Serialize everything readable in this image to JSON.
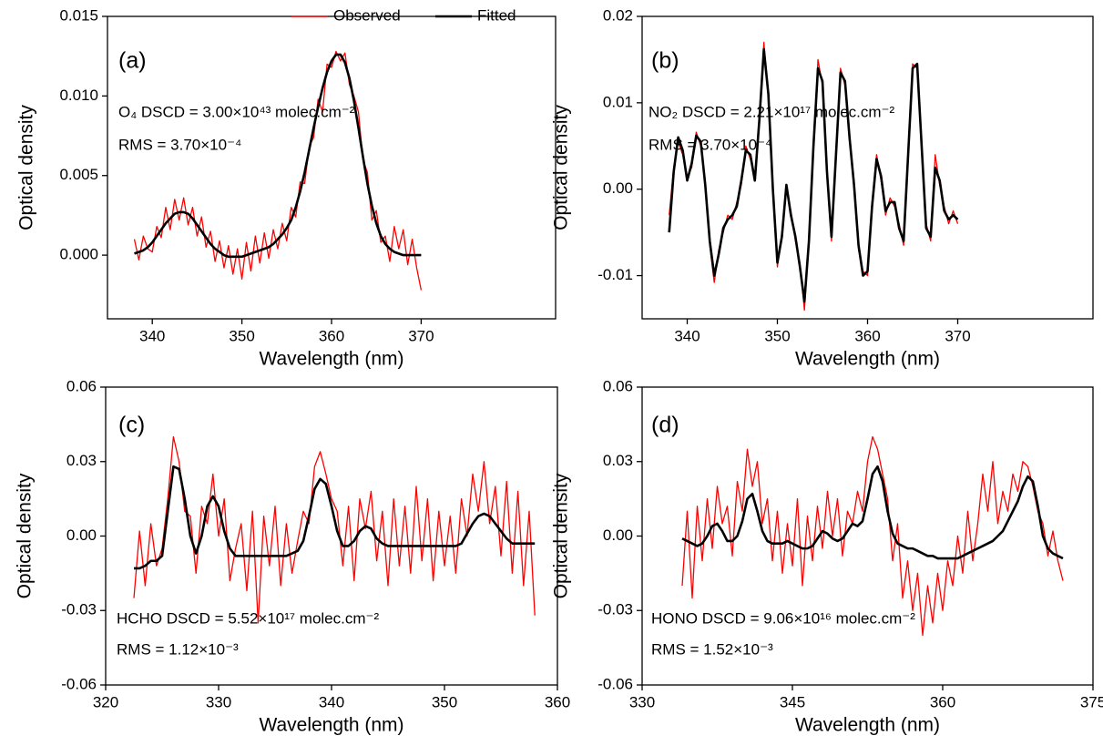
{
  "chart_data": [
    {
      "type": "line",
      "xlabel": "Wavelength (nm)",
      "ylabel": "Optical density",
      "annotations": [
        "(a)",
        "O₄ DSCD = 3.00×10⁴³ molec.cm⁻²",
        "RMS = 3.70×10⁻⁴"
      ],
      "legend": "upper right",
      "xlim": [
        335,
        385
      ],
      "xticks": [
        340,
        350,
        360,
        370
      ],
      "ylim": [
        -0.004,
        0.015
      ],
      "yticks": [
        {
          "value": 0,
          "label": "0.000"
        },
        0.005,
        {
          "value": 0.01,
          "label": "0.010"
        },
        0.015
      ],
      "x": [
        338,
        338.5,
        339,
        339.5,
        340,
        340.5,
        341,
        341.5,
        342,
        342.5,
        343,
        343.5,
        344,
        344.5,
        345,
        345.5,
        346,
        346.5,
        347,
        347.5,
        348,
        348.5,
        349,
        349.5,
        350,
        350.5,
        351,
        351.5,
        352,
        352.5,
        353,
        353.5,
        354,
        354.5,
        355,
        355.5,
        356,
        356.5,
        357,
        357.5,
        358,
        358.5,
        359,
        359.5,
        360,
        360.5,
        361,
        361.5,
        362,
        362.5,
        363,
        363.5,
        364,
        364.5,
        365,
        365.5,
        366,
        366.5,
        367,
        367.5,
        368,
        368.5,
        369,
        369.5,
        370
      ],
      "series": [
        {
          "name": "Observed",
          "color": "#ff0000",
          "values": [
            0.001,
            -0.0003,
            0.0012,
            0.0004,
            0.0002,
            0.0018,
            0.0011,
            0.003,
            0.0016,
            0.0035,
            0.0022,
            0.0036,
            0.0019,
            0.003,
            0.0012,
            0.0024,
            0.0005,
            0.0015,
            -0.0004,
            0.0009,
            -0.0008,
            0.0006,
            -0.0012,
            0.0004,
            -0.0015,
            0.0008,
            -0.001,
            0.0012,
            -0.0005,
            0.0014,
            -0.0002,
            0.0016,
            0.0004,
            0.002,
            0.0009,
            0.003,
            0.0024,
            0.0046,
            0.0045,
            0.0068,
            0.0074,
            0.0098,
            0.009,
            0.012,
            0.0118,
            0.0128,
            0.0122,
            0.0127,
            0.0107,
            0.01,
            0.009,
            0.006,
            0.0052,
            0.0022,
            0.0028,
            0.0008,
            0.0012,
            -0.0004,
            0.0018,
            0.0004,
            0.0016,
            -0.0006,
            0.001,
            -0.0008,
            -0.0022
          ]
        },
        {
          "name": "Fitted",
          "color": "#000000",
          "values": [
            0.0001,
            0.0002,
            0.0003,
            0.0005,
            0.0008,
            0.0012,
            0.0016,
            0.002,
            0.0023,
            0.0026,
            0.0027,
            0.0027,
            0.0026,
            0.0023,
            0.0019,
            0.0015,
            0.0011,
            0.0007,
            0.0004,
            0.0002,
            0.0,
            -0.0001,
            -0.0001,
            -0.0001,
            -0.0001,
            0.0,
            0.0001,
            0.0002,
            0.0003,
            0.0004,
            0.0005,
            0.0007,
            0.001,
            0.0013,
            0.0017,
            0.0022,
            0.003,
            0.004,
            0.0052,
            0.0066,
            0.008,
            0.0093,
            0.0105,
            0.0115,
            0.0122,
            0.0126,
            0.0126,
            0.0121,
            0.0111,
            0.0097,
            0.008,
            0.0062,
            0.0045,
            0.0031,
            0.002,
            0.0012,
            0.0007,
            0.0004,
            0.0002,
            0.0001,
            0.0,
            0.0,
            0.0,
            0.0,
            0.0
          ]
        }
      ]
    },
    {
      "type": "line",
      "xlabel": "Wavelength (nm)",
      "ylabel": "Optical density",
      "annotations": [
        "(b)",
        "NO₂ DSCD = 2.21×10¹⁷ molec.cm⁻²",
        "RMS = 3.70×10⁻⁴"
      ],
      "xlim": [
        335,
        385
      ],
      "xticks": [
        340,
        350,
        360,
        370
      ],
      "ylim": [
        -0.015,
        0.02
      ],
      "yticks": [
        -0.01,
        {
          "value": 0,
          "label": "0.00"
        },
        0.01,
        0.02
      ],
      "x": [
        338,
        338.5,
        339,
        339.5,
        340,
        340.5,
        341,
        341.5,
        342,
        342.5,
        343,
        343.5,
        344,
        344.5,
        345,
        345.5,
        346,
        346.5,
        347,
        347.5,
        348,
        348.5,
        349,
        349.5,
        350,
        350.5,
        351,
        351.5,
        352,
        352.5,
        353,
        353.5,
        354,
        354.5,
        355,
        355.5,
        356,
        356.5,
        357,
        357.5,
        358,
        358.5,
        359,
        359.5,
        360,
        360.5,
        361,
        361.5,
        362,
        362.5,
        363,
        363.5,
        364,
        364.5,
        365,
        365.5,
        366,
        366.5,
        367,
        367.5,
        368,
        368.5,
        369,
        369.5,
        370
      ],
      "series": [
        {
          "color": "#ff0000",
          "values": [
            -0.003,
            0.0025,
            0.0055,
            0.004,
            0.0015,
            0.0025,
            0.0066,
            0.005,
            0.001,
            -0.0065,
            -0.0108,
            -0.007,
            -0.005,
            -0.003,
            -0.0035,
            -0.0015,
            0.0005,
            0.005,
            0.0035,
            0.0015,
            0.0075,
            0.017,
            0.0105,
            0.0005,
            -0.009,
            -0.005,
            0.0,
            -0.0025,
            -0.006,
            -0.0085,
            -0.014,
            -0.0055,
            0.0045,
            0.015,
            0.012,
            0.0025,
            -0.006,
            0.0045,
            0.014,
            0.012,
            0.0055,
            0.001,
            -0.007,
            -0.0095,
            -0.01,
            -0.0015,
            0.004,
            0.001,
            -0.003,
            -0.001,
            -0.002,
            -0.004,
            -0.0065,
            0.0035,
            0.0145,
            0.014,
            0.0055,
            -0.004,
            -0.006,
            0.004,
            0.0005,
            -0.002,
            -0.004,
            -0.0025,
            -0.004
          ]
        },
        {
          "color": "#000000",
          "values": [
            -0.005,
            0.002,
            0.006,
            0.0045,
            0.001,
            0.003,
            0.0062,
            0.0055,
            0.0005,
            -0.006,
            -0.01,
            -0.0075,
            -0.0045,
            -0.0035,
            -0.003,
            -0.002,
            0.001,
            0.0045,
            0.004,
            0.001,
            0.008,
            0.0162,
            0.011,
            0.0,
            -0.0085,
            -0.0055,
            0.0005,
            -0.003,
            -0.0055,
            -0.009,
            -0.013,
            -0.006,
            0.005,
            0.014,
            0.0125,
            0.002,
            -0.0055,
            0.004,
            0.0135,
            0.0125,
            0.006,
            0.0005,
            -0.0065,
            -0.01,
            -0.0095,
            -0.002,
            0.0035,
            0.0015,
            -0.0025,
            -0.0015,
            -0.0015,
            -0.0045,
            -0.006,
            0.004,
            0.014,
            0.0145,
            0.005,
            -0.0045,
            -0.0055,
            0.0025,
            0.001,
            -0.0025,
            -0.0035,
            -0.003,
            -0.0035
          ]
        }
      ]
    },
    {
      "type": "line",
      "xlabel": "Wavelength (nm)",
      "ylabel": "Optical density",
      "annotations": [
        "(c)",
        "HCHO DSCD = 5.52×10¹⁷ molec.cm⁻²",
        "RMS = 1.12×10⁻³"
      ],
      "xlim": [
        320,
        360
      ],
      "xticks": [
        320,
        330,
        340,
        350,
        360
      ],
      "ylim": [
        -0.06,
        0.06
      ],
      "yticks": [
        -0.06,
        -0.03,
        {
          "value": 0,
          "label": "0.00"
        },
        0.03,
        0.06
      ],
      "x": [
        322.5,
        323,
        323.5,
        324,
        324.5,
        325,
        325.5,
        326,
        326.5,
        327,
        327.5,
        328,
        328.5,
        329,
        329.5,
        330,
        330.5,
        331,
        331.5,
        332,
        332.5,
        333,
        333.5,
        334,
        334.5,
        335,
        335.5,
        336,
        336.5,
        337,
        337.5,
        338,
        338.5,
        339,
        339.5,
        340,
        340.5,
        341,
        341.5,
        342,
        342.5,
        343,
        343.5,
        344,
        344.5,
        345,
        345.5,
        346,
        346.5,
        347,
        347.5,
        348,
        348.5,
        349,
        349.5,
        350,
        350.5,
        351,
        351.5,
        352,
        352.5,
        353,
        353.5,
        354,
        354.5,
        355,
        355.5,
        356,
        356.5,
        357,
        357.5,
        358
      ],
      "series": [
        {
          "color": "#ff0000",
          "values": [
            -0.025,
            0.002,
            -0.02,
            0.005,
            -0.012,
            -0.005,
            0.015,
            0.04,
            0.03,
            0.01,
            0.008,
            -0.015,
            0.012,
            0.005,
            0.025,
            0.0,
            0.015,
            -0.018,
            -0.005,
            0.005,
            -0.022,
            0.01,
            -0.035,
            0.008,
            -0.012,
            0.012,
            -0.02,
            0.005,
            -0.015,
            -0.002,
            0.01,
            0.005,
            0.028,
            0.034,
            0.025,
            0.015,
            0.01,
            -0.012,
            0.012,
            -0.018,
            0.015,
            0.003,
            0.018,
            -0.01,
            0.01,
            -0.02,
            0.015,
            -0.012,
            0.012,
            -0.015,
            0.02,
            -0.01,
            0.015,
            -0.018,
            0.01,
            -0.012,
            0.008,
            -0.015,
            0.015,
            0.0,
            0.025,
            0.01,
            0.03,
            0.005,
            0.02,
            -0.008,
            0.022,
            -0.015,
            0.018,
            -0.02,
            0.01,
            -0.032
          ]
        },
        {
          "color": "#000000",
          "values": [
            -0.013,
            -0.013,
            -0.012,
            -0.01,
            -0.01,
            -0.008,
            0.01,
            0.028,
            0.027,
            0.015,
            0.0,
            -0.007,
            0.0,
            0.012,
            0.016,
            0.012,
            0.002,
            -0.005,
            -0.008,
            -0.008,
            -0.008,
            -0.008,
            -0.008,
            -0.008,
            -0.008,
            -0.008,
            -0.008,
            -0.008,
            -0.007,
            -0.006,
            -0.002,
            0.008,
            0.019,
            0.023,
            0.021,
            0.012,
            0.002,
            -0.004,
            -0.004,
            -0.002,
            0.002,
            0.004,
            0.003,
            -0.001,
            -0.003,
            -0.004,
            -0.004,
            -0.004,
            -0.004,
            -0.004,
            -0.004,
            -0.004,
            -0.004,
            -0.004,
            -0.004,
            -0.004,
            -0.004,
            -0.004,
            -0.003,
            0.001,
            0.005,
            0.008,
            0.009,
            0.008,
            0.005,
            0.002,
            -0.001,
            -0.003,
            -0.003,
            -0.003,
            -0.003,
            -0.003
          ]
        }
      ]
    },
    {
      "type": "line",
      "xlabel": "Wavelength (nm)",
      "ylabel": "Optical density",
      "annotations": [
        "(d)",
        "HONO DSCD = 9.06×10¹⁶ molec.cm⁻²",
        "RMS = 1.52×10⁻³"
      ],
      "xlim": [
        330,
        375
      ],
      "xticks": [
        330,
        345,
        360,
        375
      ],
      "ylim": [
        -0.06,
        0.06
      ],
      "yticks": [
        -0.06,
        -0.03,
        {
          "value": 0,
          "label": "0.00"
        },
        0.03,
        0.06
      ],
      "x": [
        334,
        334.5,
        335,
        335.5,
        336,
        336.5,
        337,
        337.5,
        338,
        338.5,
        339,
        339.5,
        340,
        340.5,
        341,
        341.5,
        342,
        342.5,
        343,
        343.5,
        344,
        344.5,
        345,
        345.5,
        346,
        346.5,
        347,
        347.5,
        348,
        348.5,
        349,
        349.5,
        350,
        350.5,
        351,
        351.5,
        352,
        352.5,
        353,
        353.5,
        354,
        354.5,
        355,
        355.5,
        356,
        356.5,
        357,
        357.5,
        358,
        358.5,
        359,
        359.5,
        360,
        360.5,
        361,
        361.5,
        362,
        362.5,
        363,
        363.5,
        364,
        364.5,
        365,
        365.5,
        366,
        366.5,
        367,
        367.5,
        368,
        368.5,
        369,
        369.5,
        370,
        370.5,
        371,
        371.5,
        372
      ],
      "series": [
        {
          "color": "#ff0000",
          "values": [
            -0.02,
            0.01,
            -0.025,
            0.012,
            -0.01,
            0.015,
            -0.005,
            0.02,
            0.005,
            0.012,
            -0.008,
            0.022,
            0.01,
            0.035,
            0.02,
            0.03,
            0.005,
            0.015,
            -0.01,
            0.01,
            -0.015,
            0.005,
            -0.012,
            0.015,
            -0.02,
            0.008,
            -0.01,
            0.012,
            -0.005,
            0.018,
            0.0,
            0.015,
            -0.008,
            0.01,
            0.005,
            0.018,
            0.01,
            0.03,
            0.04,
            0.035,
            0.025,
            0.015,
            -0.01,
            0.005,
            -0.025,
            -0.01,
            -0.03,
            -0.015,
            -0.04,
            -0.02,
            -0.035,
            -0.015,
            -0.03,
            -0.01,
            -0.02,
            0.0,
            -0.015,
            0.01,
            -0.01,
            0.005,
            0.025,
            0.01,
            0.03,
            0.005,
            0.018,
            0.01,
            0.025,
            0.018,
            0.03,
            0.028,
            0.02,
            0.01,
            0.005,
            -0.008,
            0.002,
            -0.01,
            -0.018
          ]
        },
        {
          "color": "#000000",
          "values": [
            -0.001,
            -0.002,
            -0.003,
            -0.004,
            -0.003,
            0.0,
            0.004,
            0.005,
            0.002,
            -0.002,
            -0.002,
            0.0,
            0.006,
            0.015,
            0.017,
            0.01,
            0.002,
            -0.002,
            -0.003,
            -0.003,
            -0.003,
            -0.002,
            -0.003,
            -0.004,
            -0.005,
            -0.005,
            -0.004,
            -0.001,
            0.002,
            0.001,
            -0.001,
            -0.002,
            -0.001,
            0.002,
            0.005,
            0.004,
            0.006,
            0.015,
            0.025,
            0.028,
            0.022,
            0.01,
            0.001,
            -0.003,
            -0.004,
            -0.005,
            -0.005,
            -0.006,
            -0.007,
            -0.008,
            -0.008,
            -0.009,
            -0.009,
            -0.009,
            -0.009,
            -0.009,
            -0.008,
            -0.007,
            -0.006,
            -0.005,
            -0.004,
            -0.003,
            -0.002,
            0.0,
            0.002,
            0.006,
            0.01,
            0.014,
            0.02,
            0.024,
            0.022,
            0.012,
            0.0,
            -0.005,
            -0.007,
            -0.008,
            -0.009
          ]
        }
      ]
    }
  ]
}
